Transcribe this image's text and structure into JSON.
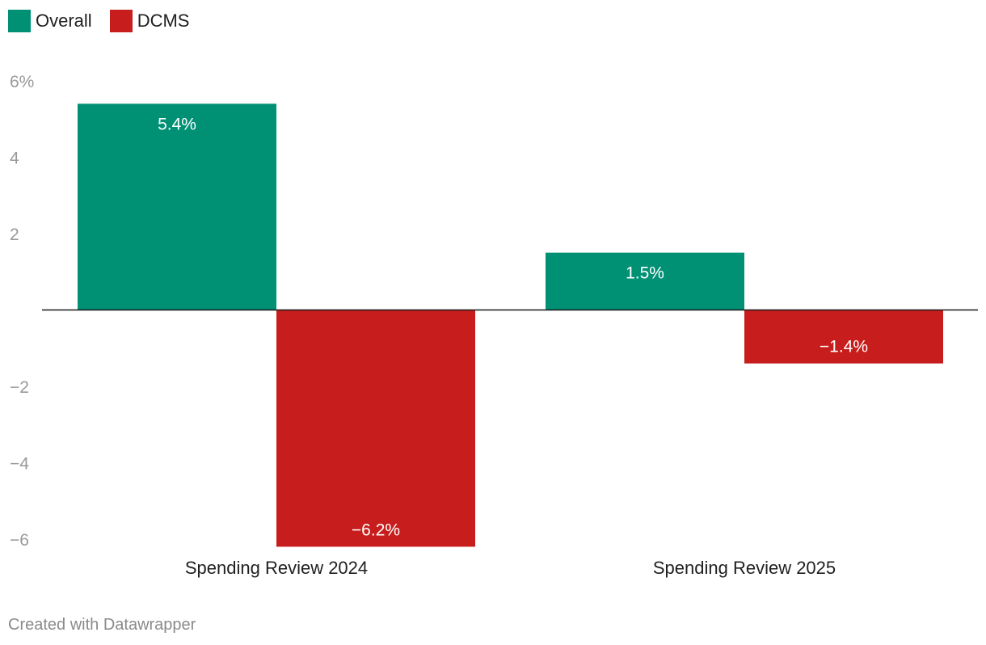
{
  "chart_data": {
    "type": "bar",
    "categories": [
      "Spending Review 2024",
      "Spending Review 2025"
    ],
    "series": [
      {
        "name": "Overall",
        "color": "#009175",
        "values": [
          5.4,
          1.5
        ],
        "labels": [
          "5.4%",
          "1.5%"
        ]
      },
      {
        "name": "DCMS",
        "color": "#c71e1d",
        "values": [
          -6.2,
          -1.4
        ],
        "labels": [
          "−6.2%",
          "−1.4%"
        ]
      }
    ],
    "ylim": [
      -6,
      6
    ],
    "yticks": [
      6,
      4,
      2,
      -2,
      -4,
      -6
    ],
    "ytick_labels": [
      "6%",
      "4",
      "2",
      "−2",
      "−4",
      "−6"
    ],
    "legend_position": "top-left",
    "grid": false
  },
  "footer": {
    "credit": "Created with Datawrapper"
  }
}
